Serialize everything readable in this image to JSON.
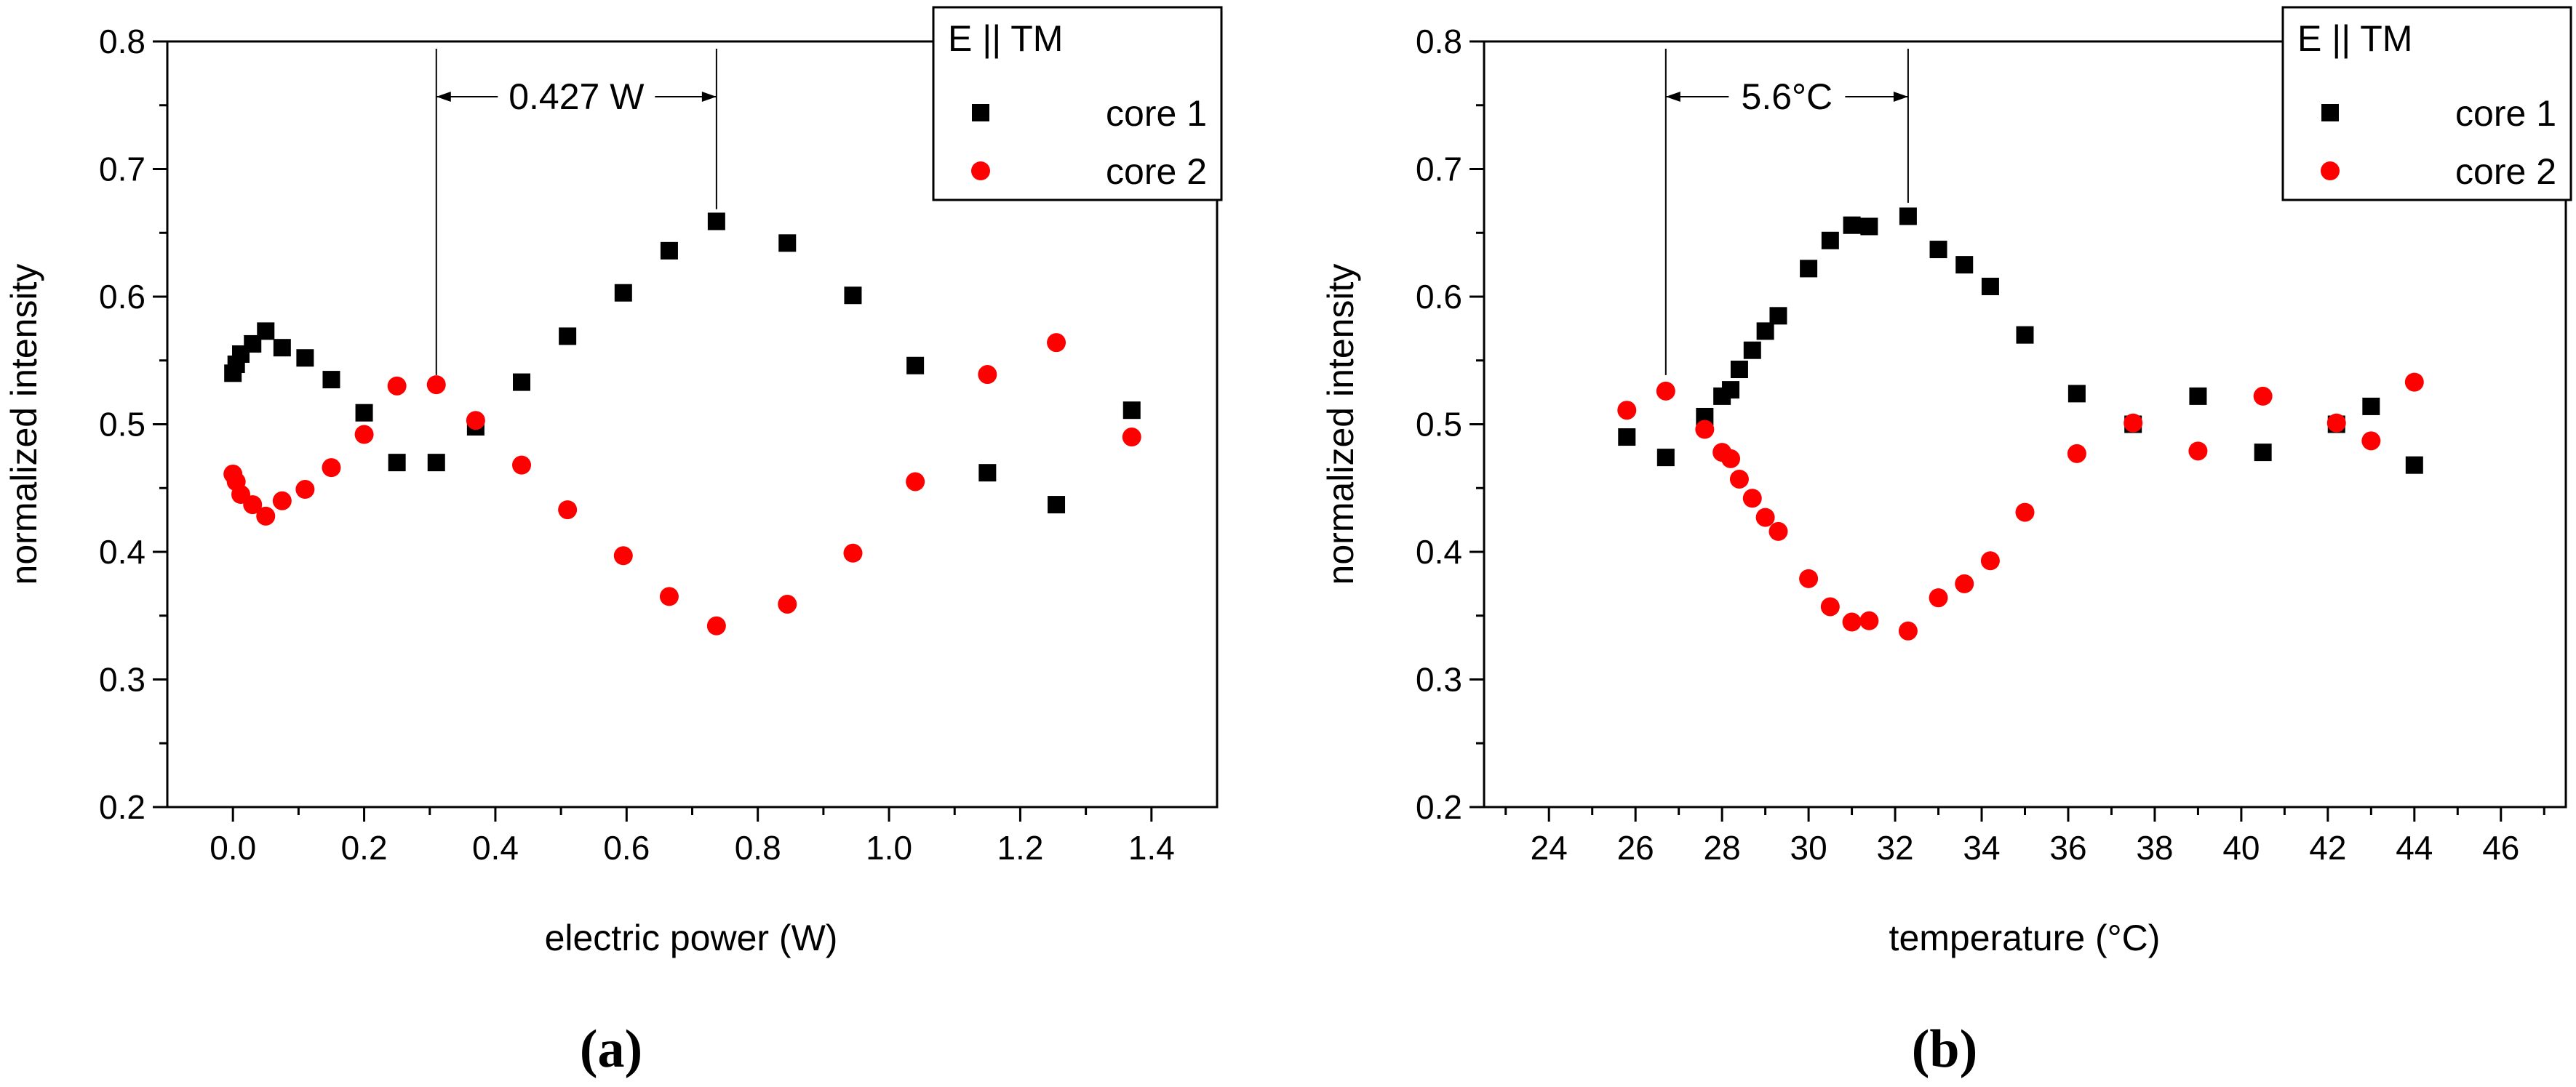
{
  "chart_data": [
    {
      "type": "scatter",
      "panel_label": "(a)",
      "xlabel": "electric power (W)",
      "ylabel": "normalized intensity",
      "xlim": [
        -0.1,
        1.5
      ],
      "ylim": [
        0.2,
        0.8
      ],
      "xticks": [
        "0.0",
        "0.2",
        "0.4",
        "0.6",
        "0.8",
        "1.0",
        "1.2",
        "1.4"
      ],
      "xtick_values": [
        0.0,
        0.2,
        0.4,
        0.6,
        0.8,
        1.0,
        1.2,
        1.4
      ],
      "yticks": [
        "0.2",
        "0.3",
        "0.4",
        "0.5",
        "0.6",
        "0.7",
        "0.8"
      ],
      "ytick_values": [
        0.2,
        0.3,
        0.4,
        0.5,
        0.6,
        0.7,
        0.8
      ],
      "grid": false,
      "legend": {
        "title": "E || TM",
        "placement": "top-right",
        "entries": [
          "core 1",
          "core 2"
        ]
      },
      "annotation": {
        "text": "0.427 W",
        "x_start": 0.31,
        "x_end": 0.737,
        "y_low_start": 0.53,
        "y_low_end": 0.66
      },
      "series": [
        {
          "name": "core 1",
          "marker": "square",
          "color": "#000000",
          "x": [
            0.0,
            0.005,
            0.012,
            0.03,
            0.05,
            0.075,
            0.11,
            0.15,
            0.2,
            0.25,
            0.31,
            0.37,
            0.44,
            0.51,
            0.595,
            0.665,
            0.737,
            0.845,
            0.945,
            1.04,
            1.15,
            1.255,
            1.37
          ],
          "y": [
            0.54,
            0.547,
            0.555,
            0.563,
            0.573,
            0.56,
            0.552,
            0.535,
            0.509,
            0.47,
            0.47,
            0.498,
            0.533,
            0.569,
            0.603,
            0.636,
            0.659,
            0.642,
            0.601,
            0.546,
            0.462,
            0.437,
            0.511
          ]
        },
        {
          "name": "core 2",
          "marker": "circle",
          "color": "#ff0000",
          "x": [
            0.0,
            0.005,
            0.012,
            0.03,
            0.05,
            0.075,
            0.11,
            0.15,
            0.2,
            0.25,
            0.31,
            0.37,
            0.44,
            0.51,
            0.595,
            0.665,
            0.737,
            0.845,
            0.945,
            1.04,
            1.15,
            1.255,
            1.37
          ],
          "y": [
            0.461,
            0.455,
            0.445,
            0.437,
            0.428,
            0.44,
            0.449,
            0.466,
            0.492,
            0.53,
            0.531,
            0.503,
            0.468,
            0.433,
            0.397,
            0.365,
            0.342,
            0.359,
            0.399,
            0.455,
            0.539,
            0.564,
            0.49
          ]
        }
      ]
    },
    {
      "type": "scatter",
      "panel_label": "(b)",
      "xlabel": "temperature (°C)",
      "ylabel": "normalized intensity",
      "xlim": [
        22.5,
        47.5
      ],
      "ylim": [
        0.2,
        0.8
      ],
      "xticks": [
        "24",
        "26",
        "28",
        "30",
        "32",
        "34",
        "36",
        "38",
        "40",
        "42",
        "44",
        "46"
      ],
      "xtick_values": [
        24,
        26,
        28,
        30,
        32,
        34,
        36,
        38,
        40,
        42,
        44,
        46
      ],
      "yticks": [
        "0.2",
        "0.3",
        "0.4",
        "0.5",
        "0.6",
        "0.7",
        "0.8"
      ],
      "ytick_values": [
        0.2,
        0.3,
        0.4,
        0.5,
        0.6,
        0.7,
        0.8
      ],
      "grid": false,
      "legend": {
        "title": "E || TM",
        "placement": "top-right",
        "entries": [
          "core 1",
          "core 2"
        ]
      },
      "annotation": {
        "text": "5.6°C",
        "x_start": 26.7,
        "x_end": 32.3,
        "y_low_start": 0.53,
        "y_low_end": 0.665
      },
      "series": [
        {
          "name": "core 1",
          "marker": "square",
          "color": "#000000",
          "x": [
            25.8,
            26.7,
            27.6,
            28.0,
            28.2,
            28.4,
            28.7,
            29.0,
            29.3,
            30.0,
            30.5,
            31.0,
            31.4,
            32.3,
            33.0,
            33.6,
            34.2,
            35.0,
            36.2,
            37.5,
            39.0,
            40.5,
            42.2,
            43.0,
            44.0
          ],
          "y": [
            0.49,
            0.474,
            0.506,
            0.522,
            0.527,
            0.543,
            0.558,
            0.573,
            0.585,
            0.622,
            0.644,
            0.656,
            0.655,
            0.663,
            0.637,
            0.625,
            0.608,
            0.57,
            0.524,
            0.5,
            0.522,
            0.478,
            0.5,
            0.514,
            0.468
          ]
        },
        {
          "name": "core 2",
          "marker": "circle",
          "color": "#ff0000",
          "x": [
            25.8,
            26.7,
            27.6,
            28.0,
            28.2,
            28.4,
            28.7,
            29.0,
            29.3,
            30.0,
            30.5,
            31.0,
            31.4,
            32.3,
            33.0,
            33.6,
            34.2,
            35.0,
            36.2,
            37.5,
            39.0,
            40.5,
            42.2,
            43.0,
            44.0
          ],
          "y": [
            0.511,
            0.526,
            0.496,
            0.478,
            0.473,
            0.457,
            0.442,
            0.427,
            0.416,
            0.379,
            0.357,
            0.345,
            0.346,
            0.338,
            0.364,
            0.375,
            0.393,
            0.431,
            0.477,
            0.501,
            0.479,
            0.522,
            0.501,
            0.487,
            0.533
          ]
        }
      ]
    }
  ]
}
